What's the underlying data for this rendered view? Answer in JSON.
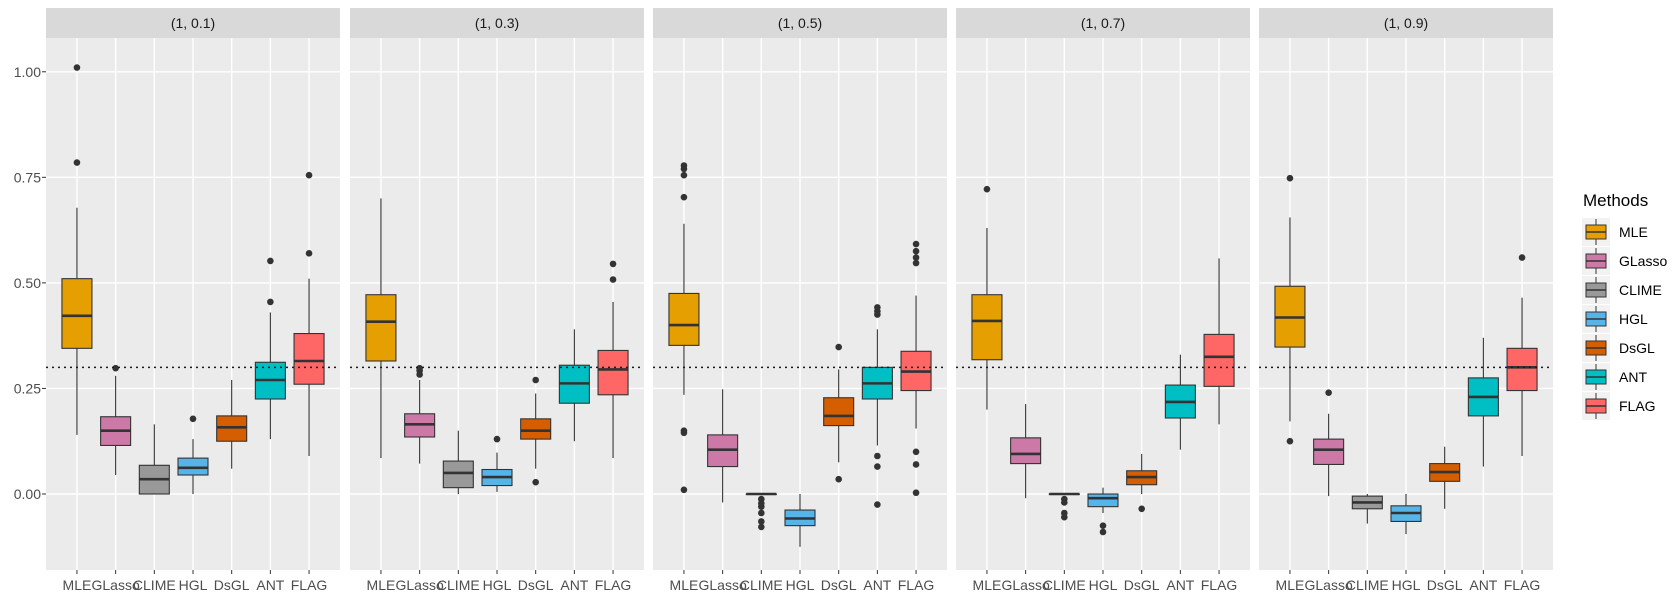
{
  "chart_data": {
    "type": "boxplot",
    "facets": [
      "(1, 0.1)",
      "(1, 0.3)",
      "(1, 0.5)",
      "(1, 0.7)",
      "(1, 0.9)"
    ],
    "categories": [
      "MLE",
      "GLasso",
      "CLIME",
      "HGL",
      "DsGL",
      "ANT",
      "FLAG"
    ],
    "y_ticks": [
      "0.00",
      "0.25",
      "0.50",
      "0.75",
      "1.00"
    ],
    "y_tick_values": [
      0,
      0.25,
      0.5,
      0.75,
      1.0
    ],
    "ylim": [
      -0.18,
      1.08
    ],
    "reference_line": 0.3,
    "legend": {
      "title": "Methods",
      "entries": [
        "MLE",
        "GLasso",
        "CLIME",
        "HGL",
        "DsGL",
        "ANT",
        "FLAG"
      ]
    },
    "colors": {
      "MLE": "#E69F00",
      "GLasso": "#CC79A7",
      "CLIME": "#999999",
      "HGL": "#56B4E9",
      "DsGL": "#D55E00",
      "ANT": "#00BFC4",
      "FLAG": "#FF6666"
    },
    "series": [
      {
        "facet": "(1, 0.1)",
        "boxes": [
          {
            "method": "MLE",
            "lower": 0.14,
            "q1": 0.345,
            "median": 0.422,
            "q3": 0.51,
            "upper": 0.678,
            "outliers": [
              0.785,
              1.01
            ]
          },
          {
            "method": "GLasso",
            "lower": 0.045,
            "q1": 0.115,
            "median": 0.15,
            "q3": 0.183,
            "upper": 0.28,
            "outliers": [
              0.298
            ]
          },
          {
            "method": "CLIME",
            "lower": 0.0,
            "q1": 0.0,
            "median": 0.035,
            "q3": 0.068,
            "upper": 0.165,
            "outliers": []
          },
          {
            "method": "HGL",
            "lower": 0.0,
            "q1": 0.045,
            "median": 0.062,
            "q3": 0.085,
            "upper": 0.13,
            "outliers": [
              0.178
            ]
          },
          {
            "method": "DsGL",
            "lower": 0.06,
            "q1": 0.125,
            "median": 0.158,
            "q3": 0.185,
            "upper": 0.27,
            "outliers": []
          },
          {
            "method": "ANT",
            "lower": 0.13,
            "q1": 0.225,
            "median": 0.27,
            "q3": 0.312,
            "upper": 0.43,
            "outliers": [
              0.455,
              0.552
            ]
          },
          {
            "method": "FLAG",
            "lower": 0.09,
            "q1": 0.26,
            "median": 0.315,
            "q3": 0.38,
            "upper": 0.51,
            "outliers": [
              0.57,
              0.755
            ]
          }
        ]
      },
      {
        "facet": "(1, 0.3)",
        "boxes": [
          {
            "method": "MLE",
            "lower": 0.085,
            "q1": 0.315,
            "median": 0.408,
            "q3": 0.472,
            "upper": 0.7,
            "outliers": []
          },
          {
            "method": "GLasso",
            "lower": 0.072,
            "q1": 0.135,
            "median": 0.165,
            "q3": 0.19,
            "upper": 0.27,
            "outliers": [
              0.283,
              0.292,
              0.298
            ]
          },
          {
            "method": "CLIME",
            "lower": 0.0,
            "q1": 0.015,
            "median": 0.05,
            "q3": 0.078,
            "upper": 0.15,
            "outliers": []
          },
          {
            "method": "HGL",
            "lower": 0.005,
            "q1": 0.02,
            "median": 0.04,
            "q3": 0.058,
            "upper": 0.098,
            "outliers": [
              0.13
            ]
          },
          {
            "method": "DsGL",
            "lower": 0.06,
            "q1": 0.13,
            "median": 0.15,
            "q3": 0.178,
            "upper": 0.238,
            "outliers": [
              0.27,
              0.028
            ]
          },
          {
            "method": "ANT",
            "lower": 0.125,
            "q1": 0.215,
            "median": 0.262,
            "q3": 0.305,
            "upper": 0.39,
            "outliers": []
          },
          {
            "method": "FLAG",
            "lower": 0.085,
            "q1": 0.235,
            "median": 0.295,
            "q3": 0.34,
            "upper": 0.455,
            "outliers": [
              0.508,
              0.545
            ]
          }
        ]
      },
      {
        "facet": "(1, 0.5)",
        "boxes": [
          {
            "method": "MLE",
            "lower": 0.235,
            "q1": 0.352,
            "median": 0.4,
            "q3": 0.475,
            "upper": 0.64,
            "outliers": [
              0.703,
              0.755,
              0.77,
              0.778,
              0.15,
              0.145,
              0.01
            ]
          },
          {
            "method": "GLasso",
            "lower": -0.02,
            "q1": 0.065,
            "median": 0.105,
            "q3": 0.14,
            "upper": 0.248,
            "outliers": []
          },
          {
            "method": "CLIME",
            "lower": 0.0,
            "q1": 0.0,
            "median": 0.0,
            "q3": 0.0,
            "upper": 0.0,
            "outliers": [
              -0.012,
              -0.022,
              -0.03,
              -0.045,
              -0.065,
              -0.078
            ]
          },
          {
            "method": "HGL",
            "lower": -0.125,
            "q1": -0.075,
            "median": -0.058,
            "q3": -0.038,
            "upper": 0.0,
            "outliers": []
          },
          {
            "method": "DsGL",
            "lower": 0.075,
            "q1": 0.162,
            "median": 0.185,
            "q3": 0.228,
            "upper": 0.295,
            "outliers": [
              0.348,
              0.035
            ]
          },
          {
            "method": "ANT",
            "lower": 0.115,
            "q1": 0.225,
            "median": 0.262,
            "q3": 0.3,
            "upper": 0.39,
            "outliers": [
              0.425,
              0.433,
              0.442,
              0.09,
              0.065,
              -0.025
            ]
          },
          {
            "method": "FLAG",
            "lower": 0.155,
            "q1": 0.245,
            "median": 0.29,
            "q3": 0.338,
            "upper": 0.47,
            "outliers": [
              0.547,
              0.56,
              0.575,
              0.592,
              0.1,
              0.07,
              0.003
            ]
          }
        ]
      },
      {
        "facet": "(1, 0.7)",
        "boxes": [
          {
            "method": "MLE",
            "lower": 0.2,
            "q1": 0.318,
            "median": 0.41,
            "q3": 0.472,
            "upper": 0.63,
            "outliers": [
              0.722
            ]
          },
          {
            "method": "GLasso",
            "lower": -0.01,
            "q1": 0.072,
            "median": 0.095,
            "q3": 0.133,
            "upper": 0.213,
            "outliers": []
          },
          {
            "method": "CLIME",
            "lower": 0.0,
            "q1": 0.0,
            "median": 0.0,
            "q3": 0.0,
            "upper": 0.0,
            "outliers": [
              -0.012,
              -0.02,
              -0.045,
              -0.055
            ]
          },
          {
            "method": "HGL",
            "lower": -0.045,
            "q1": -0.03,
            "median": -0.01,
            "q3": 0.0,
            "upper": 0.015,
            "outliers": [
              -0.075,
              -0.09
            ]
          },
          {
            "method": "DsGL",
            "lower": 0.0,
            "q1": 0.022,
            "median": 0.04,
            "q3": 0.055,
            "upper": 0.095,
            "outliers": [
              -0.035
            ]
          },
          {
            "method": "ANT",
            "lower": 0.105,
            "q1": 0.18,
            "median": 0.218,
            "q3": 0.258,
            "upper": 0.33,
            "outliers": []
          },
          {
            "method": "FLAG",
            "lower": 0.165,
            "q1": 0.255,
            "median": 0.325,
            "q3": 0.378,
            "upper": 0.558,
            "outliers": []
          }
        ]
      },
      {
        "facet": "(1, 0.9)",
        "boxes": [
          {
            "method": "MLE",
            "lower": 0.172,
            "q1": 0.348,
            "median": 0.418,
            "q3": 0.492,
            "upper": 0.655,
            "outliers": [
              0.748,
              0.125
            ]
          },
          {
            "method": "GLasso",
            "lower": -0.005,
            "q1": 0.07,
            "median": 0.105,
            "q3": 0.13,
            "upper": 0.19,
            "outliers": [
              0.24
            ]
          },
          {
            "method": "CLIME",
            "lower": -0.07,
            "q1": -0.035,
            "median": -0.02,
            "q3": -0.005,
            "upper": 0.0,
            "outliers": []
          },
          {
            "method": "HGL",
            "lower": -0.095,
            "q1": -0.065,
            "median": -0.045,
            "q3": -0.028,
            "upper": 0.0,
            "outliers": []
          },
          {
            "method": "DsGL",
            "lower": -0.035,
            "q1": 0.03,
            "median": 0.052,
            "q3": 0.072,
            "upper": 0.112,
            "outliers": []
          },
          {
            "method": "ANT",
            "lower": 0.065,
            "q1": 0.185,
            "median": 0.23,
            "q3": 0.275,
            "upper": 0.37,
            "outliers": []
          },
          {
            "method": "FLAG",
            "lower": 0.09,
            "q1": 0.245,
            "median": 0.3,
            "q3": 0.345,
            "upper": 0.465,
            "outliers": [
              0.56
            ]
          }
        ]
      }
    ]
  }
}
